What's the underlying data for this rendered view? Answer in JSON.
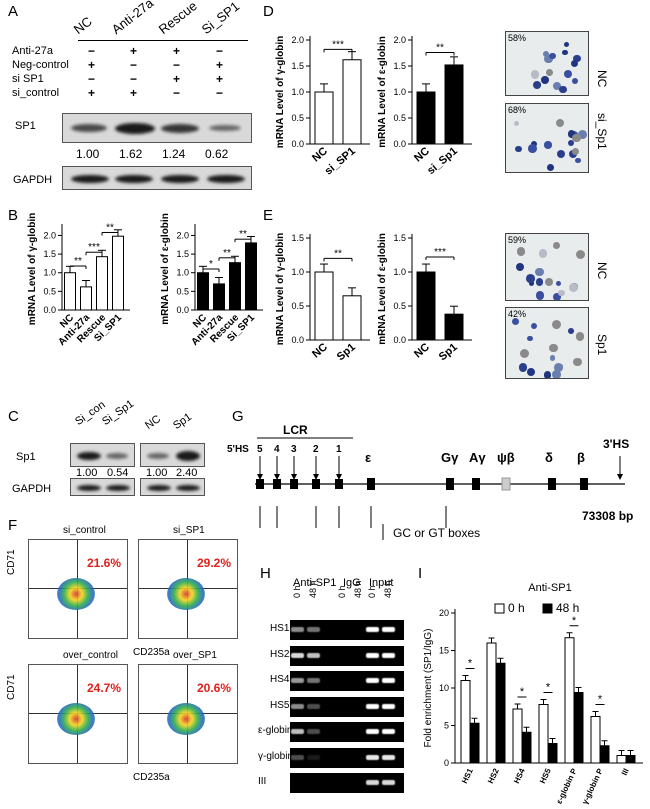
{
  "panels": {
    "A": "A",
    "B": "B",
    "C": "C",
    "D": "D",
    "E": "E",
    "F": "F",
    "G": "G",
    "H": "H",
    "I": "I"
  },
  "A": {
    "columns": [
      "NC",
      "Anti-27a",
      "Rescue",
      "Si_SP1"
    ],
    "rows": [
      {
        "label": "Anti-27a",
        "marks": [
          "−",
          "+",
          "+",
          "−"
        ]
      },
      {
        "label": "Neg-control",
        "marks": [
          "+",
          "−",
          "−",
          "+"
        ]
      },
      {
        "label": "si  SP1",
        "marks": [
          "−",
          "−",
          "+",
          "+"
        ]
      },
      {
        "label": "si_control",
        "marks": [
          "+",
          "+",
          "−",
          "−"
        ]
      }
    ],
    "blot1": "SP1",
    "values": [
      "1.00",
      "1.62",
      "1.24",
      "0.62"
    ],
    "blot2": "GAPDH"
  },
  "B": {
    "ylabel_left": "mRNA Level of γ-globin",
    "ylabel_right": "mRNA Level of ε-globin",
    "yticks": [
      "0.0",
      "0.5",
      "1.0",
      "1.5",
      "2.0"
    ],
    "ytick_values": [
      0,
      0.5,
      1.0,
      1.5,
      2.0
    ],
    "categories": [
      "NC",
      "Anti-27a",
      "Rescue",
      "Si_SP1"
    ],
    "sig_left": [
      "**",
      "***",
      "**"
    ],
    "sig_right": [
      "*",
      "**",
      "**"
    ]
  },
  "C": {
    "left_cols": [
      "Si_con",
      "Si_Sp1"
    ],
    "right_cols": [
      "NC",
      "Sp1"
    ],
    "label1": "Sp1",
    "label2": "GAPDH",
    "left_vals": [
      "1.00",
      "0.54"
    ],
    "right_vals": [
      "1.00",
      "2.40"
    ]
  },
  "D": {
    "ylabel_left": "mRNA Level of γ-globin",
    "ylabel_right": "mRNA Level of ε-globin",
    "yticks": [
      "0.0",
      "0.5",
      "1.0",
      "1.5",
      "2.0"
    ],
    "ytick_values": [
      0,
      0.5,
      1.0,
      1.5,
      2.0
    ],
    "cats_left": [
      "NC",
      "si_SP1"
    ],
    "cats_right": [
      "NC",
      "si_Sp1"
    ],
    "sig_left": "***",
    "sig_right": "**",
    "img_labels": [
      "NC",
      "si_Sp1"
    ],
    "img_pcts": [
      "58%",
      "68%"
    ]
  },
  "E": {
    "ylabel_left": "mRNA Level of γ-globin",
    "ylabel_right": "mRNA Level of ε-globin",
    "yticks": [
      "0.0",
      "0.5",
      "1.0",
      "1.5"
    ],
    "ytick_values": [
      0,
      0.5,
      1.0,
      1.5
    ],
    "cats": [
      "NC",
      "Sp1"
    ],
    "sig_left": "**",
    "sig_right": "***",
    "img_labels": [
      "NC",
      "Sp1"
    ],
    "img_pcts": [
      "59%",
      "42%"
    ]
  },
  "F": {
    "titles": [
      "si_control",
      "si_SP1",
      "over_control",
      "over_SP1"
    ],
    "pcts": [
      "21.6%",
      "29.2%",
      "24.7%",
      "20.6%"
    ],
    "xlabel": "CD235a",
    "ylabel": "CD71"
  },
  "G": {
    "lcr": "LCR",
    "hs5": "5'HS",
    "hs_nums": [
      "5",
      "4",
      "3",
      "2",
      "1"
    ],
    "genes": [
      "ε",
      "Gγ",
      "Aγ",
      "ψβ",
      "δ",
      "β"
    ],
    "hs3": "3'HS",
    "legend": "GC or GT boxes",
    "length": "73308 bp"
  },
  "H": {
    "groups": [
      "Anti-SP1",
      "IgG",
      "Input"
    ],
    "times": [
      "0 h",
      "48 h",
      "0 h",
      "48 h",
      "0 h",
      "48 h"
    ],
    "rows": [
      "HS1",
      "HS2",
      "HS4",
      "HS5",
      "ε-globin P",
      "γ-globin P",
      "III"
    ]
  },
  "I": {
    "title": "Anti-SP1",
    "ylabel": "Fold enrichment (SP1/IgG)",
    "legend": [
      "0 h",
      "48 h"
    ],
    "yticks": [
      "0",
      "5",
      "10",
      "15",
      "20"
    ],
    "ytick_values": [
      0,
      5,
      10,
      15,
      20
    ],
    "sig": [
      "*",
      "*",
      "*",
      "*",
      "*"
    ]
  },
  "chart_data": [
    {
      "type": "bar",
      "id": "B-gamma",
      "categories": [
        "NC",
        "Anti-27a",
        "Rescue",
        "Si_SP1"
      ],
      "values": [
        1.0,
        0.62,
        1.43,
        1.98
      ],
      "ylim": [
        0,
        2.2
      ],
      "ylabel": "mRNA Level of γ-globin",
      "color": "#ffffff"
    },
    {
      "type": "bar",
      "id": "B-epsilon",
      "categories": [
        "NC",
        "Anti-27a",
        "Rescue",
        "Si_SP1"
      ],
      "values": [
        1.0,
        0.7,
        1.27,
        1.8
      ],
      "ylim": [
        0,
        2.2
      ],
      "ylabel": "mRNA Level of ε-globin",
      "color": "#000000"
    },
    {
      "type": "bar",
      "id": "D-gamma",
      "categories": [
        "NC",
        "si_SP1"
      ],
      "values": [
        1.0,
        1.62
      ],
      "ylim": [
        0,
        2.0
      ],
      "ylabel": "mRNA Level of γ-globin",
      "color": "#ffffff"
    },
    {
      "type": "bar",
      "id": "D-epsilon",
      "categories": [
        "NC",
        "si_Sp1"
      ],
      "values": [
        1.0,
        1.52
      ],
      "ylim": [
        0,
        2.0
      ],
      "ylabel": "mRNA Level of ε-globin",
      "color": "#000000"
    },
    {
      "type": "bar",
      "id": "E-gamma",
      "categories": [
        "NC",
        "Sp1"
      ],
      "values": [
        1.0,
        0.65
      ],
      "ylim": [
        0,
        1.5
      ],
      "ylabel": "mRNA Level of γ-globin",
      "color": "#ffffff"
    },
    {
      "type": "bar",
      "id": "E-epsilon",
      "categories": [
        "NC",
        "Sp1"
      ],
      "values": [
        1.0,
        0.38
      ],
      "ylim": [
        0,
        1.5
      ],
      "ylabel": "mRNA Level of ε-globin",
      "color": "#000000"
    },
    {
      "type": "bar",
      "id": "I",
      "title": "Anti-SP1",
      "categories": [
        "HS1",
        "HS2",
        "HS4",
        "HS5",
        "ε-globin P",
        "γ-globin P",
        "III"
      ],
      "series": [
        {
          "name": "0 h",
          "values": [
            11.0,
            16.0,
            7.2,
            7.8,
            16.7,
            6.2,
            1.0
          ],
          "color": "#ffffff"
        },
        {
          "name": "48 h",
          "values": [
            5.3,
            13.3,
            4.1,
            2.6,
            9.4,
            2.3,
            1.0
          ],
          "color": "#000000"
        }
      ],
      "ylim": [
        0,
        20
      ],
      "ylabel": "Fold enrichment (SP1/IgG)"
    }
  ]
}
